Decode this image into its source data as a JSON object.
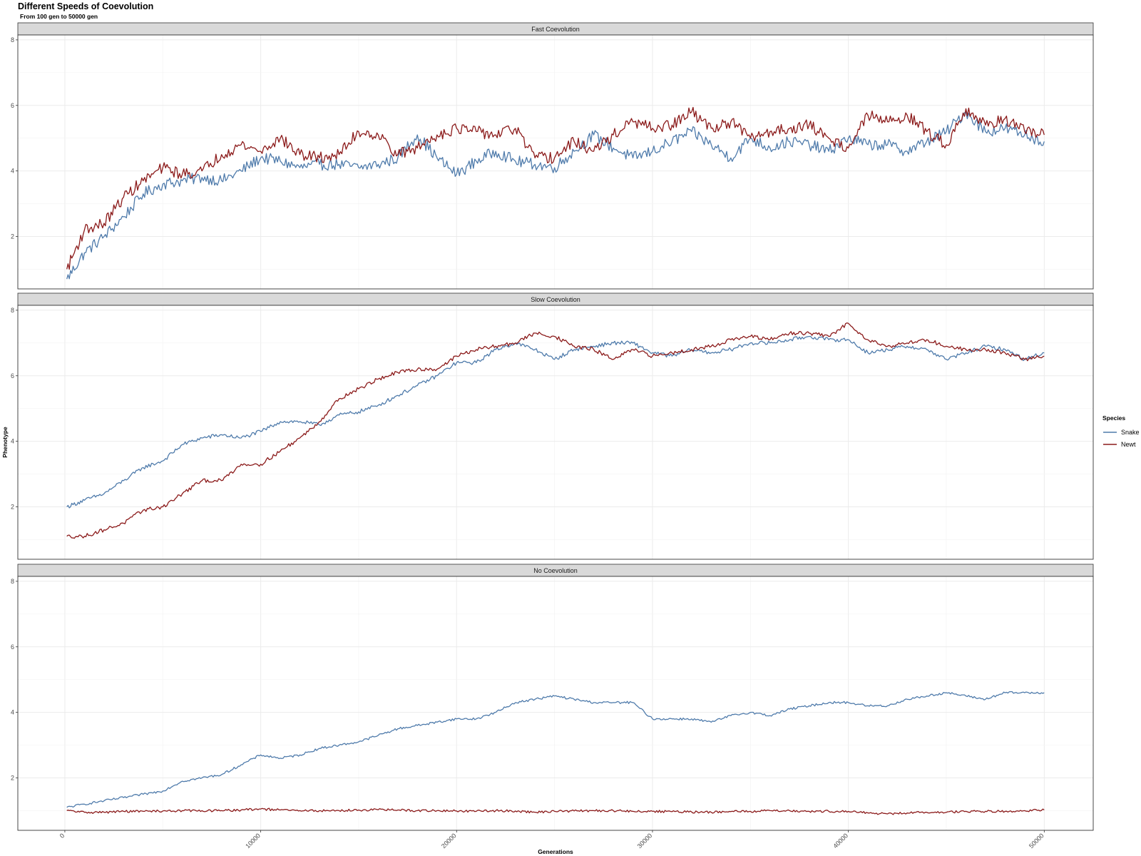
{
  "chart_data": {
    "type": "line",
    "title": "Different Speeds of Coevolution",
    "subtitle": "From 100 gen to 50000 gen",
    "xlabel": "Generations",
    "ylabel": "Phenotype",
    "xlim": [
      -2400,
      52500
    ],
    "ylim": [
      0.4,
      8.15
    ],
    "x_ticks": [
      0,
      10000,
      20000,
      30000,
      40000,
      50000
    ],
    "x_tick_labels": [
      "0",
      "10000",
      "20000",
      "30000",
      "40000",
      "50000"
    ],
    "y_ticks": [
      2,
      4,
      6,
      8
    ],
    "y_tick_labels": [
      "2",
      "4",
      "6",
      "8"
    ],
    "grid": true,
    "legend": {
      "title": "Species",
      "position": "right",
      "entries": [
        {
          "label": "Snake",
          "color": "#4f7bab"
        },
        {
          "label": "Newt",
          "color": "#8b1a1a"
        }
      ]
    },
    "colors": {
      "snake": "#4f7bab",
      "newt": "#8b1a1a",
      "strip_bg": "#d9d9d9"
    },
    "panels": [
      {
        "name": "Fast Coevolution",
        "x": [
          100,
          1000,
          2000,
          3000,
          4000,
          5000,
          6000,
          7000,
          8000,
          9000,
          10000,
          11000,
          12000,
          13000,
          14000,
          15000,
          16000,
          17000,
          18000,
          19000,
          20000,
          21000,
          22000,
          23000,
          24000,
          25000,
          26000,
          27000,
          28000,
          29000,
          30000,
          31000,
          32000,
          33000,
          34000,
          35000,
          36000,
          37000,
          38000,
          39000,
          40000,
          41000,
          42000,
          43000,
          44000,
          45000,
          46000,
          47000,
          48000,
          49000,
          50000
        ],
        "series": [
          {
            "name": "Snake",
            "values": [
              0.7,
              1.5,
              2.0,
              2.6,
              3.3,
              3.6,
              3.7,
              3.8,
              3.7,
              4.0,
              4.4,
              4.3,
              4.1,
              4.2,
              4.2,
              4.1,
              4.2,
              4.4,
              5.1,
              4.4,
              3.9,
              4.3,
              4.6,
              4.3,
              4.2,
              4.1,
              4.6,
              5.1,
              4.7,
              4.4,
              4.6,
              4.9,
              5.2,
              4.8,
              4.4,
              5.0,
              4.7,
              4.9,
              4.8,
              4.6,
              5.0,
              4.8,
              4.8,
              4.6,
              4.9,
              5.2,
              5.8,
              5.2,
              5.3,
              5.1,
              4.9
            ]
          },
          {
            "name": "Newt",
            "values": [
              1.0,
              2.2,
              2.4,
              3.2,
              3.7,
              4.1,
              3.9,
              4.0,
              4.5,
              4.8,
              4.6,
              5.0,
              4.5,
              4.4,
              4.5,
              5.2,
              5.1,
              4.5,
              4.7,
              5.1,
              5.3,
              5.2,
              5.1,
              5.3,
              4.4,
              4.4,
              4.9,
              4.6,
              5.1,
              5.5,
              5.3,
              5.4,
              5.8,
              5.3,
              5.5,
              5.0,
              5.2,
              5.3,
              5.4,
              5.0,
              4.7,
              5.7,
              5.5,
              5.7,
              5.2,
              4.8,
              5.9,
              5.4,
              5.6,
              5.2,
              5.1
            ]
          }
        ]
      },
      {
        "name": "Slow Coevolution",
        "x": [
          100,
          1000,
          2000,
          3000,
          4000,
          5000,
          6000,
          7000,
          8000,
          9000,
          10000,
          11000,
          12000,
          13000,
          14000,
          15000,
          16000,
          17000,
          18000,
          19000,
          20000,
          21000,
          22000,
          23000,
          24000,
          25000,
          26000,
          27000,
          28000,
          29000,
          30000,
          31000,
          32000,
          33000,
          34000,
          35000,
          36000,
          37000,
          38000,
          39000,
          40000,
          41000,
          42000,
          43000,
          44000,
          45000,
          46000,
          47000,
          48000,
          49000,
          50000
        ],
        "series": [
          {
            "name": "Snake",
            "values": [
              2.0,
              2.2,
              2.4,
              2.8,
              3.2,
              3.4,
              3.9,
              4.1,
              4.2,
              4.1,
              4.3,
              4.6,
              4.6,
              4.5,
              4.8,
              4.9,
              5.1,
              5.4,
              5.7,
              6.0,
              6.4,
              6.4,
              6.8,
              7.0,
              6.8,
              6.5,
              6.8,
              6.9,
              7.0,
              7.0,
              6.7,
              6.6,
              6.8,
              6.7,
              6.8,
              7.0,
              7.0,
              7.1,
              7.2,
              7.1,
              7.1,
              6.7,
              6.8,
              6.9,
              6.8,
              6.5,
              6.7,
              6.9,
              6.8,
              6.5,
              6.7
            ]
          },
          {
            "name": "Newt",
            "values": [
              1.1,
              1.1,
              1.3,
              1.5,
              1.9,
              2.0,
              2.4,
              2.8,
              2.8,
              3.3,
              3.3,
              3.7,
              4.1,
              4.6,
              5.3,
              5.6,
              5.9,
              6.1,
              6.2,
              6.2,
              6.6,
              6.8,
              6.9,
              7.0,
              7.3,
              7.2,
              6.9,
              6.8,
              6.5,
              6.8,
              6.6,
              6.7,
              6.8,
              6.9,
              7.1,
              7.2,
              7.1,
              7.3,
              7.3,
              7.2,
              7.6,
              7.1,
              6.9,
              7.0,
              7.1,
              6.9,
              6.8,
              6.8,
              6.7,
              6.5,
              6.6
            ]
          }
        ]
      },
      {
        "name": "No Coevolution",
        "x": [
          100,
          1000,
          2000,
          3000,
          4000,
          5000,
          6000,
          7000,
          8000,
          9000,
          10000,
          11000,
          12000,
          13000,
          14000,
          15000,
          16000,
          17000,
          18000,
          19000,
          20000,
          21000,
          22000,
          23000,
          24000,
          25000,
          26000,
          27000,
          28000,
          29000,
          30000,
          31000,
          32000,
          33000,
          34000,
          35000,
          36000,
          37000,
          38000,
          39000,
          40000,
          41000,
          42000,
          43000,
          44000,
          45000,
          46000,
          47000,
          48000,
          49000,
          50000
        ],
        "series": [
          {
            "name": "Snake",
            "values": [
              1.1,
              1.2,
              1.3,
              1.4,
              1.5,
              1.6,
              1.9,
              2.0,
              2.1,
              2.4,
              2.7,
              2.6,
              2.7,
              2.9,
              3.0,
              3.1,
              3.3,
              3.5,
              3.6,
              3.7,
              3.8,
              3.8,
              4.0,
              4.3,
              4.4,
              4.5,
              4.4,
              4.3,
              4.3,
              4.3,
              3.8,
              3.8,
              3.8,
              3.7,
              3.9,
              4.0,
              3.9,
              4.1,
              4.2,
              4.3,
              4.3,
              4.2,
              4.2,
              4.4,
              4.5,
              4.6,
              4.5,
              4.4,
              4.6,
              4.6,
              4.6
            ]
          },
          {
            "name": "Newt",
            "values": [
              1.0,
              0.95,
              0.95,
              0.98,
              0.98,
              0.99,
              1.0,
              1.0,
              1.0,
              1.02,
              1.05,
              1.02,
              1.0,
              1.0,
              1.0,
              1.02,
              1.03,
              1.02,
              1.0,
              1.0,
              0.99,
              0.98,
              1.0,
              0.99,
              0.95,
              0.98,
              0.99,
              1.0,
              1.0,
              0.98,
              0.98,
              0.97,
              0.96,
              0.95,
              0.97,
              0.98,
              1.0,
              1.0,
              0.98,
              0.98,
              0.98,
              0.93,
              0.9,
              0.93,
              0.95,
              0.95,
              0.98,
              0.98,
              0.98,
              1.0,
              1.02
            ]
          }
        ]
      }
    ]
  }
}
